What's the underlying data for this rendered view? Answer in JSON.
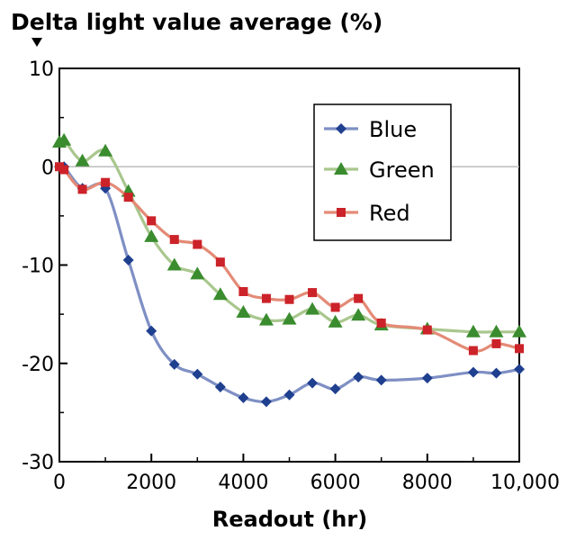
{
  "chart_data": {
    "type": "line",
    "title": "Delta light value average (%)",
    "xlabel": "Readout (hr)",
    "ylabel": "",
    "xlim": [
      0,
      10000
    ],
    "ylim": [
      -30,
      10
    ],
    "x_ticks": [
      0,
      2000,
      4000,
      6000,
      8000,
      10000
    ],
    "x_tick_labels": [
      "0",
      "2000",
      "4000",
      "6000",
      "8000",
      "10,000"
    ],
    "y_ticks": [
      10,
      0,
      -10,
      -20,
      -30
    ],
    "y_tick_labels": [
      "10",
      "0",
      "-10",
      "-20",
      "-30"
    ],
    "grid": false,
    "zero_line": true,
    "legend_position": "top-right",
    "series": [
      {
        "name": "Blue",
        "color": "#1f3f8f",
        "line_color": "#7e8fc4",
        "marker": "diamond",
        "x": [
          0,
          100,
          500,
          1000,
          1500,
          2000,
          2500,
          3000,
          3500,
          4000,
          4500,
          5000,
          5500,
          6000,
          6500,
          7000,
          8000,
          9000,
          9500,
          10000
        ],
        "y": [
          0,
          0,
          -2.2,
          -2.2,
          -9.5,
          -16.7,
          -20.1,
          -21.1,
          -22.4,
          -23.5,
          -23.9,
          -23.2,
          -22,
          -22.6,
          -21.4,
          -21.7,
          -21.5,
          -20.9,
          -21,
          -20.6
        ]
      },
      {
        "name": "Green",
        "color": "#3a8c2e",
        "line_color": "#a9c78e",
        "marker": "triangle",
        "x": [
          0,
          100,
          500,
          1000,
          1500,
          2000,
          2500,
          3000,
          3500,
          4000,
          4500,
          5000,
          5500,
          6000,
          6500,
          7000,
          8000,
          9000,
          9500,
          10000
        ],
        "y": [
          2.5,
          2.7,
          0.6,
          1.6,
          -2.5,
          -7.1,
          -10,
          -10.9,
          -13,
          -14.8,
          -15.6,
          -15.5,
          -14.5,
          -15.8,
          -15.1,
          -16.1,
          -16.5,
          -16.8,
          -16.8,
          -16.8
        ]
      },
      {
        "name": "Red",
        "color": "#cc2229",
        "line_color": "#e48a76",
        "marker": "square",
        "x": [
          0,
          100,
          500,
          1000,
          1500,
          2000,
          2500,
          3000,
          3500,
          4000,
          4500,
          5000,
          5500,
          6000,
          6500,
          7000,
          8000,
          9000,
          9500,
          10000
        ],
        "y": [
          0,
          -0.3,
          -2.3,
          -1.6,
          -3.1,
          -5.5,
          -7.4,
          -7.9,
          -9.7,
          -12.7,
          -13.4,
          -13.5,
          -12.8,
          -14.3,
          -13.4,
          -15.9,
          -16.6,
          -18.7,
          -18,
          -18.5
        ]
      }
    ]
  }
}
